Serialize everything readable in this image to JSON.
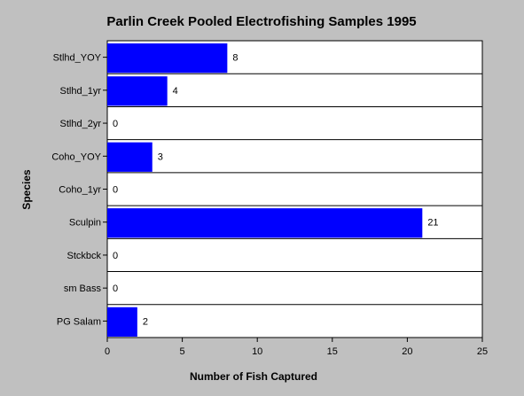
{
  "chart_data": {
    "type": "bar",
    "orientation": "horizontal",
    "title": "Parlin Creek Pooled Electrofishing Samples 1995",
    "xlabel": "Number of Fish Captured",
    "ylabel": "Species",
    "categories": [
      "Stlhd_YOY",
      "Stlhd_1yr",
      "Stlhd_2yr",
      "Coho_YOY",
      "Coho_1yr",
      "Sculpin",
      "Stckbck",
      "sm Bass",
      "PG Salam"
    ],
    "values": [
      8,
      4,
      0,
      3,
      0,
      21,
      0,
      0,
      2
    ],
    "data_labels": [
      "8",
      "4",
      "0",
      "3",
      "0",
      "21",
      "0",
      "0",
      "2"
    ],
    "xlim": [
      0,
      25
    ],
    "xticks": [
      "0",
      "5",
      "10",
      "15",
      "20",
      "25"
    ],
    "grid": "horizontal lines between categories",
    "bar_color": "#0000ff",
    "background_color": "#c0c0c0",
    "plot_background_color": "#ffffff"
  }
}
